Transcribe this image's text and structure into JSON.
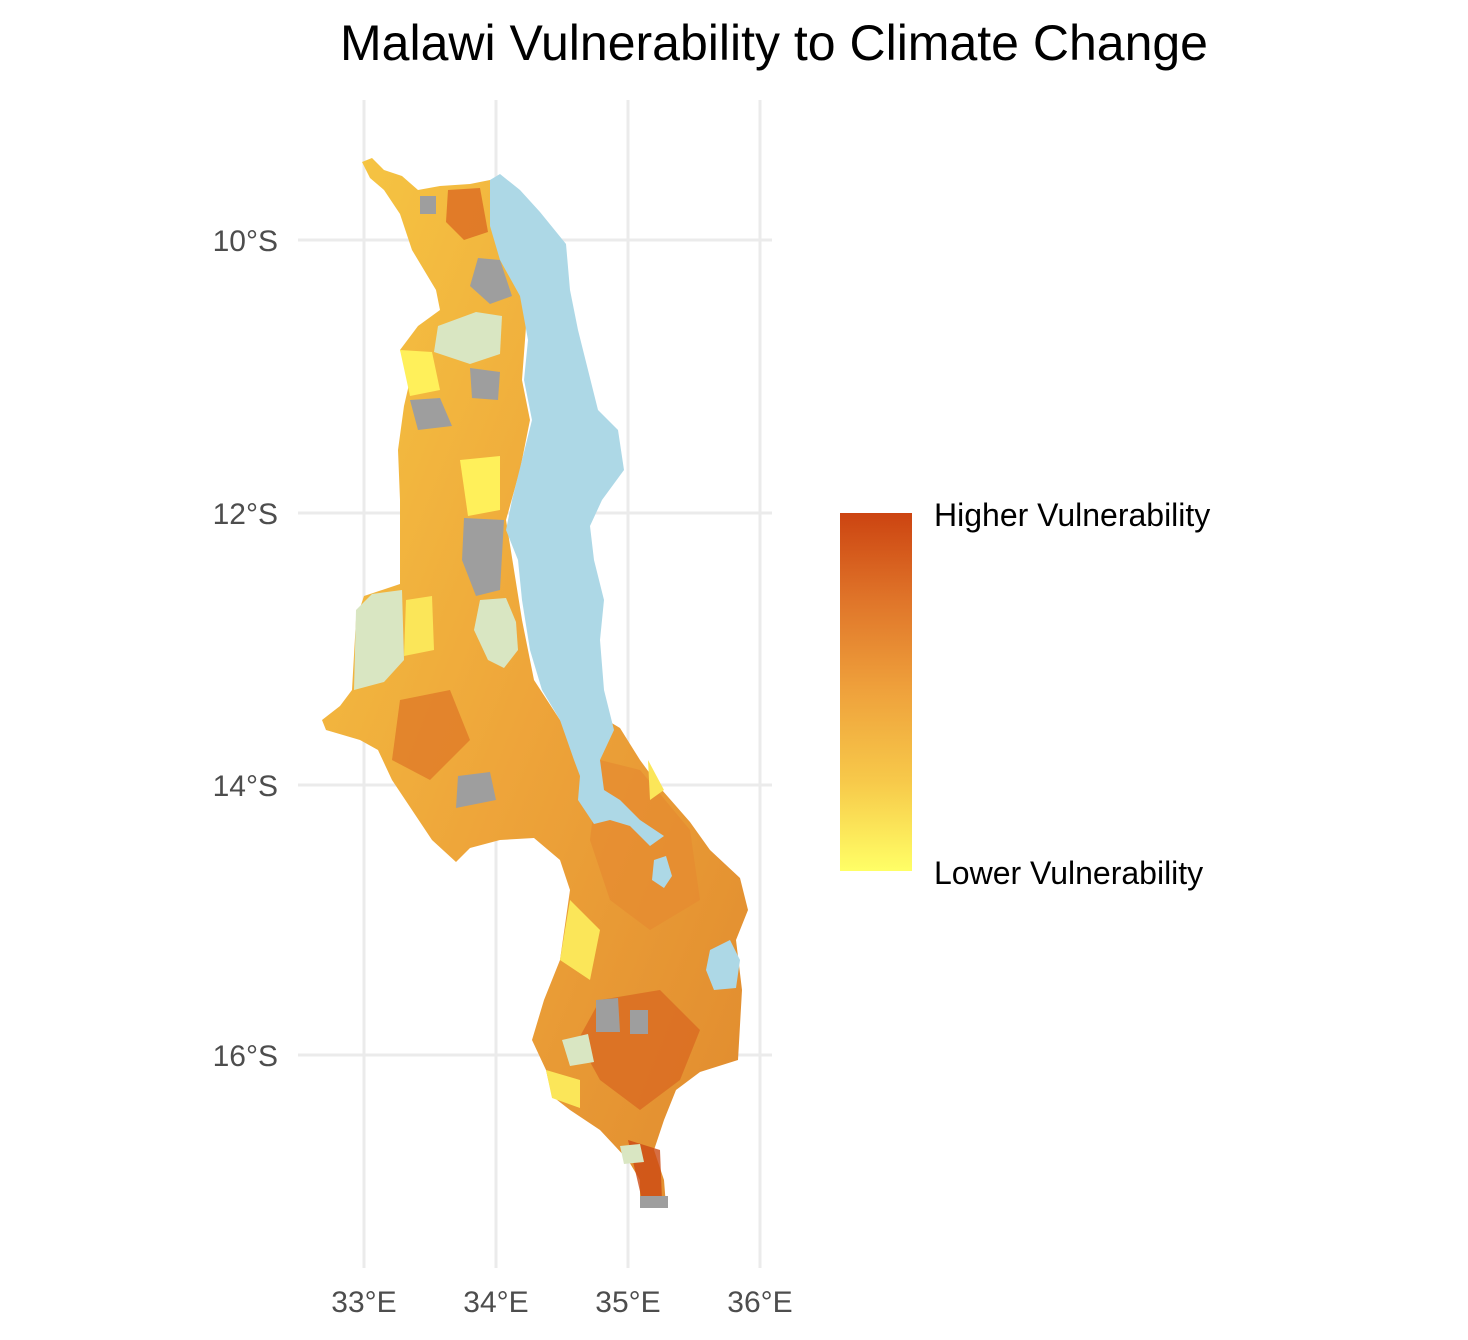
{
  "title": "Malawi Vulnerability to Climate Change",
  "axes": {
    "x_ticks": [
      {
        "value": 33,
        "label": "33°E"
      },
      {
        "value": 34,
        "label": "34°E"
      },
      {
        "value": 35,
        "label": "35°E"
      },
      {
        "value": 36,
        "label": "36°E"
      }
    ],
    "y_ticks": [
      {
        "value": -10,
        "label": "10°S"
      },
      {
        "value": -12,
        "label": "12°S"
      },
      {
        "value": -14,
        "label": "14°S"
      },
      {
        "value": -16,
        "label": "16°S"
      }
    ]
  },
  "legend": {
    "high_label": "Higher Vulnerability",
    "low_label": "Lower Vulnerability",
    "gradient_colors": [
      "#ffff66",
      "#f7c94a",
      "#efa23c",
      "#e0762a",
      "#cc4411"
    ]
  },
  "colors": {
    "lake": "#add8e6",
    "no_data": "#9e9e9e",
    "protected_area": "#d9e6c2",
    "grid": "#ebebeb"
  }
}
